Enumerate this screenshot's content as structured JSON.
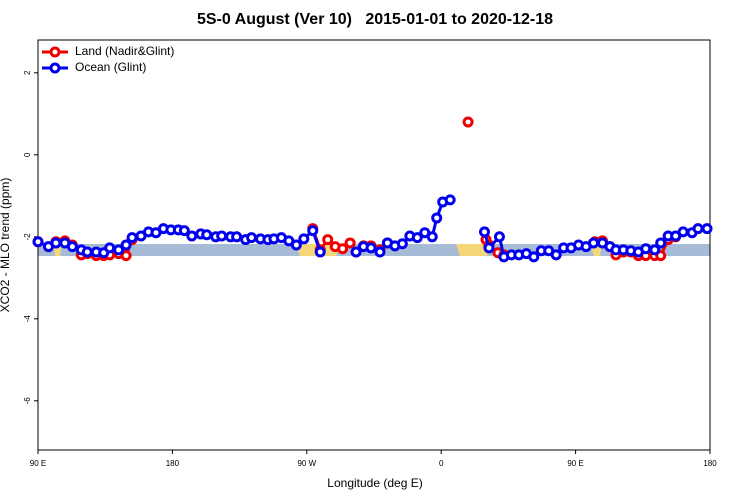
{
  "chart_data": {
    "type": "line",
    "title": "5S-0 August (Ver 10)   2015-01-01 to 2020-12-18",
    "x_label": "Longitude (deg E)",
    "y_label": "XCO2 - MLO trend (ppm)",
    "xlim": [
      -270,
      180
    ],
    "ylim": [
      -7.2,
      2.8
    ],
    "xticks": [
      {
        "value": -270,
        "label": "90 E"
      },
      {
        "value": -180,
        "label": "180"
      },
      {
        "value": -90,
        "label": "90 W"
      },
      0,
      {
        "value": 90,
        "label": "90 E"
      },
      180
    ],
    "yticks": [
      2,
      0,
      -2,
      -4,
      -6
    ],
    "legend": "top-left",
    "series": [
      {
        "name": "Land (Nadir&Glint)",
        "color": "#ee0000",
        "x": [
          -270,
          -263,
          -258,
          -252,
          -247,
          -241,
          -237,
          -231,
          -226,
          -222,
          -216,
          -211,
          -207,
          null,
          -86,
          -81,
          -76,
          -71,
          -66,
          -61,
          -57,
          -52,
          -47,
          -41,
          -36,
          null,
          18,
          null,
          30,
          32,
          38,
          42,
          null,
          103,
          108,
          113,
          117,
          122,
          127,
          132,
          137,
          143,
          147,
          152,
          157
        ],
        "values": [
          -2.12,
          -2.24,
          -2.12,
          -2.1,
          -2.2,
          -2.44,
          -2.41,
          -2.46,
          -2.46,
          -2.44,
          -2.41,
          -2.46,
          -2.07,
          null,
          -1.8,
          -2.32,
          -2.07,
          -2.24,
          -2.29,
          -2.15,
          -2.37,
          -2.22,
          -2.22,
          -2.32,
          -2.15,
          null,
          0.8,
          null,
          -2.07,
          -2.2,
          -2.39,
          -2.44,
          null,
          -2.12,
          -2.1,
          -2.24,
          -2.44,
          -2.37,
          -2.37,
          -2.46,
          -2.46,
          -2.46,
          -2.46,
          -2.07,
          -2.0
        ]
      },
      {
        "name": "Ocean (Glint)",
        "color": "#0000ee",
        "x": [
          -270,
          -263,
          -258,
          -252,
          -247,
          -241,
          -237,
          -231,
          -226,
          -222,
          -216,
          -211,
          -207,
          -201,
          -196,
          -191,
          -186,
          -181,
          -176,
          -172,
          -167,
          -161,
          -157,
          -151,
          -147,
          -141,
          -137,
          -131,
          -127,
          -121,
          -116,
          -112,
          -107,
          -102,
          -97,
          -92,
          -86,
          -81,
          null,
          -57,
          -52,
          -47,
          -41,
          -36,
          -31,
          -26,
          -21,
          -16,
          -11,
          -6,
          -3,
          1,
          6,
          null,
          29,
          32,
          39,
          42,
          47,
          52,
          57,
          62,
          67,
          72,
          77,
          82,
          87,
          92,
          97,
          102,
          108,
          113,
          117,
          122,
          127,
          132,
          137,
          143,
          147,
          152,
          157,
          162,
          168,
          172,
          178
        ],
        "values": [
          -2.12,
          -2.24,
          -2.15,
          -2.15,
          -2.24,
          -2.32,
          -2.37,
          -2.37,
          -2.39,
          -2.27,
          -2.32,
          -2.2,
          -2.02,
          -1.98,
          -1.88,
          -1.9,
          -1.8,
          -1.83,
          -1.83,
          -1.85,
          -1.98,
          -1.93,
          -1.95,
          -2.0,
          -1.98,
          -2.0,
          -2.0,
          -2.07,
          -2.02,
          -2.05,
          -2.07,
          -2.05,
          -2.02,
          -2.1,
          -2.2,
          -2.05,
          -1.85,
          -2.37,
          null,
          -2.37,
          -2.24,
          -2.27,
          -2.37,
          -2.15,
          -2.22,
          -2.17,
          -1.98,
          -2.02,
          -1.9,
          -2.0,
          -1.54,
          -1.15,
          -1.1,
          null,
          -1.88,
          -2.27,
          -2.0,
          -2.49,
          -2.44,
          -2.44,
          -2.41,
          -2.49,
          -2.34,
          -2.34,
          -2.44,
          -2.27,
          -2.27,
          -2.2,
          -2.24,
          -2.15,
          -2.15,
          -2.24,
          -2.32,
          -2.32,
          -2.34,
          -2.37,
          -2.29,
          -2.32,
          -2.15,
          -1.98,
          -1.98,
          -1.88,
          -1.9,
          -1.8,
          -1.8
        ]
      }
    ]
  }
}
